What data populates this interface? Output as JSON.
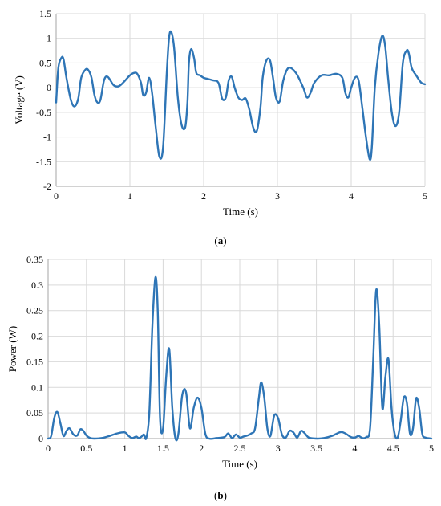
{
  "captions": {
    "a_open": "(",
    "a_letter": "a",
    "a_close": ")",
    "b_open": "(",
    "b_letter": "b",
    "b_close": ")"
  },
  "chart_data": [
    {
      "type": "line",
      "xlabel": "Time (s)",
      "ylabel": "Voltage (V)",
      "xlim": [
        0,
        5
      ],
      "ylim": [
        -2,
        1.5
      ],
      "xticks": [
        "0",
        "1",
        "2",
        "3",
        "4",
        "5"
      ],
      "yticks": [
        "1.5",
        "1",
        "0.5",
        "0",
        "-0.5",
        "-1",
        "-1.5",
        "-2"
      ],
      "grid": true,
      "color": "#2e75b6",
      "series": [
        {
          "x": [
            0,
            0.03,
            0.07,
            0.1,
            0.14,
            0.2,
            0.25,
            0.3,
            0.34,
            0.4,
            0.44,
            0.48,
            0.52,
            0.56,
            0.6,
            0.65,
            0.7,
            0.78,
            0.85,
            0.92,
            1.0,
            1.06,
            1.1,
            1.15,
            1.18,
            1.22,
            1.26,
            1.3,
            1.35,
            1.4,
            1.45,
            1.5,
            1.53,
            1.56,
            1.6,
            1.65,
            1.7,
            1.75,
            1.78,
            1.8,
            1.83,
            1.87,
            1.9,
            1.95,
            2.0,
            2.05,
            2.12,
            2.2,
            2.25,
            2.3,
            2.34,
            2.38,
            2.42,
            2.47,
            2.52,
            2.57,
            2.62,
            2.67,
            2.72,
            2.77,
            2.8,
            2.85,
            2.9,
            2.94,
            2.98,
            3.03,
            3.08,
            3.15,
            3.25,
            3.35,
            3.4,
            3.45,
            3.5,
            3.6,
            3.7,
            3.8,
            3.88,
            3.92,
            3.96,
            4.0,
            4.05,
            4.1,
            4.15,
            4.2,
            4.25,
            4.28,
            4.32,
            4.37,
            4.42,
            4.46,
            4.5,
            4.55,
            4.6,
            4.65,
            4.7,
            4.75,
            4.78,
            4.82,
            4.88,
            4.95,
            5.0
          ],
          "y": [
            -0.3,
            0.4,
            0.6,
            0.58,
            0.2,
            -0.25,
            -0.38,
            -0.22,
            0.2,
            0.37,
            0.35,
            0.2,
            -0.15,
            -0.3,
            -0.25,
            0.15,
            0.22,
            0.05,
            0.03,
            0.12,
            0.25,
            0.3,
            0.28,
            0.1,
            -0.15,
            -0.1,
            0.2,
            -0.1,
            -0.8,
            -1.4,
            -1.2,
            0.3,
            1.0,
            1.13,
            0.8,
            -0.2,
            -0.75,
            -0.8,
            -0.3,
            0.5,
            0.78,
            0.6,
            0.3,
            0.25,
            0.2,
            0.18,
            0.15,
            0.1,
            -0.22,
            -0.2,
            0.15,
            0.22,
            0.0,
            -0.2,
            -0.25,
            -0.22,
            -0.45,
            -0.8,
            -0.88,
            -0.4,
            0.2,
            0.55,
            0.55,
            0.2,
            -0.2,
            -0.28,
            0.15,
            0.4,
            0.3,
            0.0,
            -0.2,
            -0.1,
            0.1,
            0.25,
            0.25,
            0.28,
            0.2,
            -0.1,
            -0.2,
            0.0,
            0.2,
            0.15,
            -0.4,
            -1.0,
            -1.45,
            -1.2,
            0.0,
            0.7,
            1.05,
            0.85,
            0.2,
            -0.5,
            -0.78,
            -0.5,
            0.5,
            0.75,
            0.7,
            0.4,
            0.25,
            0.1,
            0.07
          ]
        }
      ]
    },
    {
      "type": "line",
      "xlabel": "Time (s)",
      "ylabel": "Power (W)",
      "xlim": [
        0,
        5
      ],
      "ylim": [
        0,
        0.35
      ],
      "xticks": [
        "0",
        "0.5",
        "1",
        "1.5",
        "2",
        "2.5",
        "3",
        "3.5",
        "4",
        "4.5",
        "5"
      ],
      "yticks": [
        "0.35",
        "0.3",
        "0.25",
        "0.2",
        "0.15",
        "0.1",
        "0.05",
        "0"
      ],
      "grid": true,
      "color": "#2e75b6",
      "series": [
        {
          "x": [
            0,
            0.04,
            0.08,
            0.12,
            0.16,
            0.2,
            0.24,
            0.28,
            0.33,
            0.38,
            0.42,
            0.46,
            0.5,
            0.55,
            0.6,
            0.7,
            0.8,
            0.9,
            1.0,
            1.05,
            1.1,
            1.15,
            1.18,
            1.22,
            1.25,
            1.28,
            1.32,
            1.36,
            1.4,
            1.43,
            1.46,
            1.5,
            1.54,
            1.58,
            1.62,
            1.66,
            1.7,
            1.75,
            1.8,
            1.85,
            1.9,
            1.95,
            2.0,
            2.05,
            2.1,
            2.2,
            2.3,
            2.35,
            2.4,
            2.45,
            2.5,
            2.55,
            2.6,
            2.65,
            2.7,
            2.75,
            2.78,
            2.82,
            2.86,
            2.9,
            2.95,
            3.0,
            3.05,
            3.1,
            3.15,
            3.2,
            3.25,
            3.3,
            3.35,
            3.4,
            3.5,
            3.6,
            3.7,
            3.8,
            3.85,
            3.9,
            3.95,
            4.0,
            4.05,
            4.1,
            4.15,
            4.2,
            4.24,
            4.28,
            4.32,
            4.36,
            4.4,
            4.44,
            4.48,
            4.52,
            4.56,
            4.6,
            4.64,
            4.68,
            4.72,
            4.76,
            4.8,
            4.84,
            4.88,
            4.92,
            5.0
          ],
          "y": [
            0,
            0.005,
            0.04,
            0.052,
            0.03,
            0.005,
            0.015,
            0.02,
            0.008,
            0.006,
            0.018,
            0.015,
            0.006,
            0.001,
            0,
            0.001,
            0.005,
            0.01,
            0.012,
            0.005,
            0.001,
            0.004,
            0.001,
            0.004,
            0.008,
            0.001,
            0.05,
            0.22,
            0.315,
            0.25,
            0.04,
            0.02,
            0.12,
            0.175,
            0.06,
            0.001,
            0.01,
            0.085,
            0.09,
            0.02,
            0.06,
            0.08,
            0.06,
            0.01,
            0,
            0.001,
            0.003,
            0.01,
            0.001,
            0.008,
            0.002,
            0.004,
            0.006,
            0.01,
            0.02,
            0.08,
            0.11,
            0.08,
            0.02,
            0.005,
            0.045,
            0.04,
            0.008,
            0.002,
            0.015,
            0.012,
            0.002,
            0.015,
            0.01,
            0.002,
            0,
            0.001,
            0.005,
            0.012,
            0.012,
            0.008,
            0.003,
            0.002,
            0.005,
            0.001,
            0.003,
            0.02,
            0.15,
            0.29,
            0.22,
            0.06,
            0.12,
            0.155,
            0.06,
            0.01,
            0.002,
            0.035,
            0.08,
            0.07,
            0.01,
            0.02,
            0.078,
            0.06,
            0.01,
            0.002,
            0
          ]
        }
      ]
    }
  ]
}
